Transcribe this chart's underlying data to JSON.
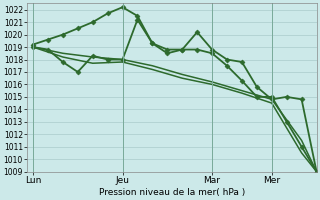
{
  "xlabel": "Pression niveau de la mer( hPa )",
  "ylim": [
    1009,
    1022.5
  ],
  "yticks": [
    1009,
    1010,
    1011,
    1012,
    1013,
    1014,
    1015,
    1016,
    1017,
    1018,
    1019,
    1020,
    1021,
    1022
  ],
  "xtick_labels": [
    "Lun",
    "Jeu",
    "Mar",
    "Mer"
  ],
  "xtick_positions": [
    0,
    30,
    60,
    80
  ],
  "xlim": [
    -2,
    95
  ],
  "vlines": [
    0,
    30,
    60,
    80
  ],
  "background_color": "#cce9e9",
  "grid_color": "#aacccc",
  "line_color": "#2d6a2d",
  "series": [
    {
      "x": [
        0,
        5,
        10,
        15,
        20,
        25,
        30,
        35,
        40,
        45,
        50,
        55,
        60,
        65,
        70,
        75,
        80,
        85,
        90,
        95
      ],
      "y": [
        1019.2,
        1019.6,
        1020.0,
        1020.5,
        1021.0,
        1021.7,
        1022.2,
        1021.5,
        1019.3,
        1018.5,
        1018.8,
        1020.2,
        1018.8,
        1018.0,
        1017.8,
        1015.8,
        1014.8,
        1015.0,
        1014.8,
        1009.0
      ],
      "marker": "D",
      "markersize": 2.5,
      "linewidth": 1.3
    },
    {
      "x": [
        0,
        5,
        10,
        15,
        20,
        25,
        30,
        35,
        40,
        45,
        50,
        55,
        60,
        65,
        70,
        75,
        80,
        85,
        90,
        95
      ],
      "y": [
        1019.0,
        1018.8,
        1017.8,
        1017.0,
        1018.3,
        1018.0,
        1018.0,
        1021.2,
        1019.3,
        1018.8,
        1018.8,
        1018.8,
        1018.5,
        1017.5,
        1016.3,
        1015.0,
        1015.0,
        1013.0,
        1011.0,
        1009.0
      ],
      "marker": "D",
      "markersize": 2.5,
      "linewidth": 1.3
    },
    {
      "x": [
        0,
        10,
        20,
        30,
        40,
        50,
        60,
        70,
        80,
        90,
        95
      ],
      "y": [
        1019.0,
        1018.5,
        1018.2,
        1018.0,
        1017.5,
        1016.8,
        1016.2,
        1015.5,
        1014.8,
        1011.5,
        1009.0
      ],
      "marker": null,
      "markersize": 0,
      "linewidth": 1.1
    },
    {
      "x": [
        0,
        10,
        20,
        30,
        40,
        50,
        60,
        70,
        80,
        90,
        95
      ],
      "y": [
        1019.0,
        1018.2,
        1017.7,
        1017.8,
        1017.2,
        1016.5,
        1016.0,
        1015.3,
        1014.5,
        1010.5,
        1009.0
      ],
      "marker": null,
      "markersize": 0,
      "linewidth": 1.1
    }
  ]
}
